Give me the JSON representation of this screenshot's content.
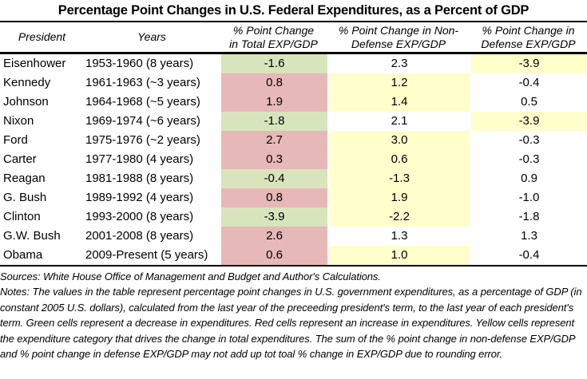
{
  "title": "Percentage Point Changes in U.S. Federal Expenditures, as a Percent of GDP",
  "colors": {
    "green": "#d8e4bc",
    "red": "#e6b8b7",
    "yellow": "#ffffcc",
    "white": "#ffffff"
  },
  "table": {
    "columns": [
      {
        "label": "President"
      },
      {
        "label": "Years"
      },
      {
        "line1": "% Point Change",
        "line2": "in Total EXP/GDP"
      },
      {
        "line1": "% Point Change in Non-",
        "line2": "Defense EXP/GDP"
      },
      {
        "line1": "% Point Change in",
        "line2": "Defense EXP/GDP"
      }
    ],
    "rows": [
      {
        "president": "Eisenhower",
        "years": "1953-1960 (8 years)",
        "total": "-1.6",
        "total_color": "green",
        "nondef": "2.3",
        "nondef_color": "white",
        "def": "-3.9",
        "def_color": "yellow"
      },
      {
        "president": "Kennedy",
        "years": "1961-1963 (~3 years)",
        "total": "0.8",
        "total_color": "red",
        "nondef": "1.2",
        "nondef_color": "yellow",
        "def": "-0.4",
        "def_color": "white"
      },
      {
        "president": "Johnson",
        "years": "1964-1968 (~5 years)",
        "total": "1.9",
        "total_color": "red",
        "nondef": "1.4",
        "nondef_color": "yellow",
        "def": "0.5",
        "def_color": "white"
      },
      {
        "president": "Nixon",
        "years": "1969-1974 (~6 years)",
        "total": "-1.8",
        "total_color": "green",
        "nondef": "2.1",
        "nondef_color": "white",
        "def": "-3.9",
        "def_color": "yellow"
      },
      {
        "president": "Ford",
        "years": "1975-1976 (~2 years)",
        "total": "2.7",
        "total_color": "red",
        "nondef": "3.0",
        "nondef_color": "yellow",
        "def": "-0.3",
        "def_color": "white"
      },
      {
        "president": "Carter",
        "years": "1977-1980 (4 years)",
        "total": "0.3",
        "total_color": "red",
        "nondef": "0.6",
        "nondef_color": "yellow",
        "def": "-0.3",
        "def_color": "white"
      },
      {
        "president": "Reagan",
        "years": "1981-1988 (8 years)",
        "total": "-0.4",
        "total_color": "green",
        "nondef": "-1.3",
        "nondef_color": "yellow",
        "def": "0.9",
        "def_color": "white"
      },
      {
        "president": "G. Bush",
        "years": "1989-1992 (4 years)",
        "total": "0.8",
        "total_color": "red",
        "nondef": "1.9",
        "nondef_color": "yellow",
        "def": "-1.0",
        "def_color": "white"
      },
      {
        "president": "Clinton",
        "years": "1993-2000 (8 years)",
        "total": "-3.9",
        "total_color": "green",
        "nondef": "-2.2",
        "nondef_color": "yellow",
        "def": "-1.8",
        "def_color": "white"
      },
      {
        "president": "G.W. Bush",
        "years": "2001-2008 (8 years)",
        "total": "2.6",
        "total_color": "red",
        "nondef": "1.3",
        "nondef_color": "white",
        "def": "1.3",
        "def_color": "white"
      },
      {
        "president": "Obama",
        "years": "2009-Present (5 years)",
        "total": "0.6",
        "total_color": "red",
        "nondef": "1.0",
        "nondef_color": "yellow",
        "def": "-0.4",
        "def_color": "white"
      }
    ]
  },
  "footer": {
    "sources": "Sources: White House Office of Management and Budget and Author's Calculations.",
    "notes": "Notes: The values in the table represent percentage point changes in U.S. government expenditures, as a percentage of GDP (in constant 2005 U.S. dollars), calculated from the last year of the preceeding president's term, to the last year of each president's term. Green cells represent a decrease in expenditures. Red cells represent an increase in expenditures. Yellow cells represent the expenditure category that drives the change in total expenditures. The sum of the % point change in non-defense EXP/GDP and % point change in defense EXP/GDP may not add up tot toal % change in EXP/GDP due to rounding error."
  },
  "chart_data": {
    "type": "table",
    "title": "Percentage Point Changes in U.S. Federal Expenditures, as a Percent of GDP",
    "columns": [
      "President",
      "Years",
      "% Point Change in Total EXP/GDP",
      "% Point Change in Non-Defense EXP/GDP",
      "% Point Change in Defense EXP/GDP"
    ],
    "rows": [
      [
        "Eisenhower",
        "1953-1960 (8 years)",
        -1.6,
        2.3,
        -3.9
      ],
      [
        "Kennedy",
        "1961-1963 (~3 years)",
        0.8,
        1.2,
        -0.4
      ],
      [
        "Johnson",
        "1964-1968 (~5 years)",
        1.9,
        1.4,
        0.5
      ],
      [
        "Nixon",
        "1969-1974 (~6 years)",
        -1.8,
        2.1,
        -3.9
      ],
      [
        "Ford",
        "1975-1976 (~2 years)",
        2.7,
        3.0,
        -0.3
      ],
      [
        "Carter",
        "1977-1980 (4 years)",
        0.3,
        0.6,
        -0.3
      ],
      [
        "Reagan",
        "1981-1988 (8 years)",
        -0.4,
        -1.3,
        0.9
      ],
      [
        "G. Bush",
        "1989-1992 (4 years)",
        0.8,
        1.9,
        -1.0
      ],
      [
        "Clinton",
        "1993-2000 (8 years)",
        -3.9,
        -2.2,
        -1.8
      ],
      [
        "G.W. Bush",
        "2001-2008 (8 years)",
        2.6,
        1.3,
        1.3
      ],
      [
        "Obama",
        "2009-Present (5 years)",
        0.6,
        1.0,
        -0.4
      ]
    ],
    "cell_color_legend": {
      "green": "decrease in expenditures",
      "red": "increase in expenditures",
      "yellow": "expenditure category that drives the change in total expenditures"
    }
  }
}
